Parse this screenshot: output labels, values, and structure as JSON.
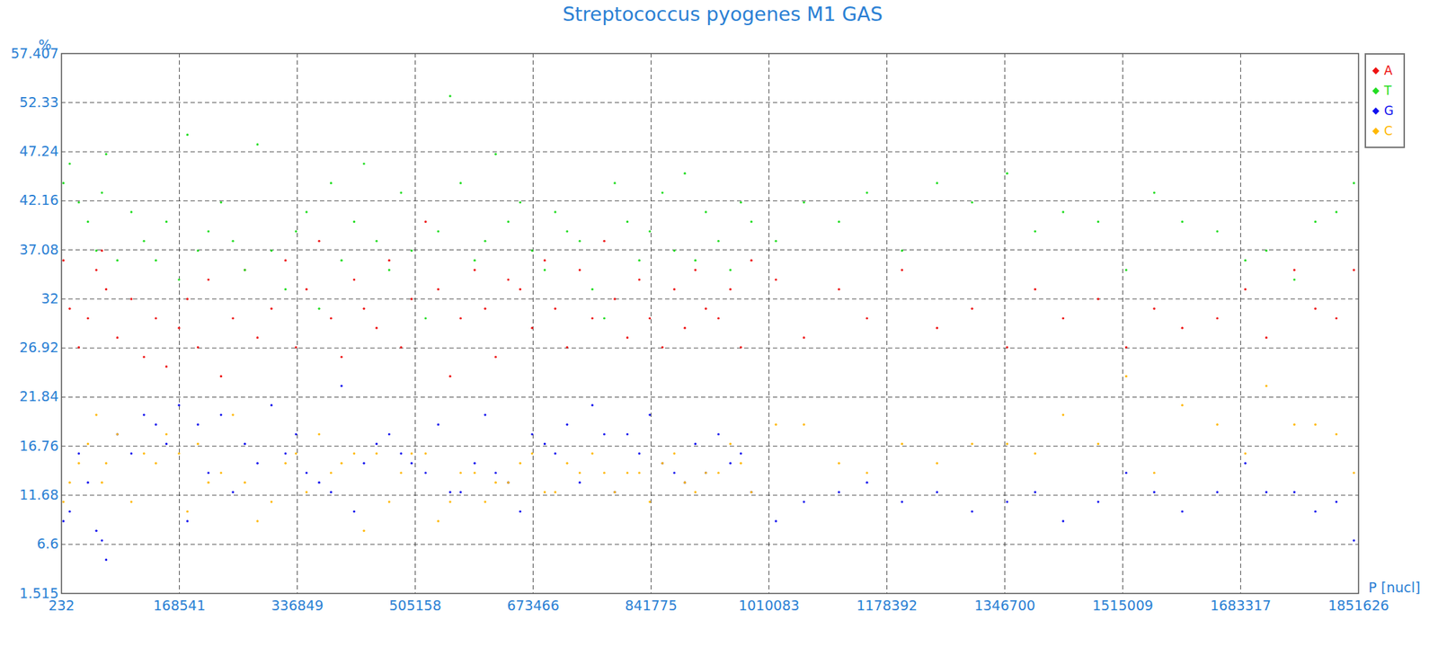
{
  "chart_data": {
    "type": "scatter",
    "title": "Streptococcus pyogenes M1 GAS",
    "y_label": "%",
    "x_label": "P [nucl]",
    "xlim": [
      232,
      1851626
    ],
    "ylim": [
      1.515,
      57.407
    ],
    "xticks": [
      232,
      168541,
      336849,
      505158,
      673466,
      841775,
      1010083,
      1178392,
      1346700,
      1515009,
      1683317,
      1851626
    ],
    "yticks": [
      1.515,
      6.6,
      11.68,
      16.76,
      21.84,
      26.92,
      32,
      37.08,
      42.16,
      47.24,
      52.33,
      57.407
    ],
    "grid": true,
    "legend": "top-right",
    "marker": "point",
    "x": [
      3000,
      12000,
      25000,
      38000,
      50000,
      58000,
      64000,
      80000,
      100000,
      118000,
      135000,
      150000,
      168000,
      180000,
      195000,
      210000,
      228000,
      245000,
      262000,
      280000,
      300000,
      320000,
      335000,
      350000,
      368000,
      385000,
      400000,
      418000,
      432000,
      450000,
      468000,
      485000,
      500000,
      520000,
      538000,
      555000,
      570000,
      590000,
      605000,
      620000,
      638000,
      655000,
      672000,
      690000,
      705000,
      722000,
      740000,
      758000,
      775000,
      790000,
      808000,
      825000,
      840000,
      858000,
      875000,
      890000,
      905000,
      920000,
      938000,
      955000,
      970000,
      985000,
      1020000,
      1060000,
      1110000,
      1150000,
      1200000,
      1250000,
      1300000,
      1350000,
      1390000,
      1430000,
      1480000,
      1520000,
      1560000,
      1600000,
      1650000,
      1690000,
      1720000,
      1760000,
      1790000,
      1820000,
      1845000
    ],
    "series": [
      {
        "name": "A",
        "color": "#ee1111",
        "values": [
          36,
          31,
          27,
          30,
          35,
          37,
          33,
          28,
          32,
          26,
          30,
          25,
          29,
          32,
          27,
          34,
          24,
          30,
          35,
          28,
          31,
          36,
          27,
          33,
          38,
          30,
          26,
          34,
          31,
          29,
          36,
          27,
          32,
          40,
          33,
          24,
          30,
          35,
          31,
          26,
          34,
          33,
          29,
          36,
          31,
          27,
          35,
          30,
          38,
          32,
          28,
          34,
          30,
          27,
          33,
          29,
          35,
          31,
          30,
          33,
          27,
          36,
          34,
          28,
          33,
          30,
          35,
          29,
          31,
          27,
          33,
          30,
          32,
          27,
          31,
          29,
          30,
          33,
          28,
          35,
          31,
          30,
          35
        ]
      },
      {
        "name": "T",
        "color": "#22dd22",
        "values": [
          44,
          46,
          42,
          40,
          37,
          43,
          47,
          36,
          41,
          38,
          36,
          40,
          34,
          49,
          37,
          39,
          42,
          38,
          35,
          48,
          37,
          33,
          39,
          41,
          31,
          44,
          36,
          40,
          46,
          38,
          35,
          43,
          37,
          30,
          39,
          53,
          44,
          36,
          38,
          47,
          40,
          42,
          37,
          35,
          41,
          39,
          38,
          33,
          30,
          44,
          40,
          36,
          39,
          43,
          37,
          45,
          36,
          41,
          38,
          35,
          42,
          40,
          38,
          42,
          40,
          43,
          37,
          44,
          42,
          45,
          39,
          41,
          40,
          35,
          43,
          40,
          39,
          36,
          37,
          34,
          40,
          41,
          44
        ]
      },
      {
        "name": "G",
        "color": "#1111ee",
        "values": [
          9,
          10,
          16,
          13,
          8,
          7,
          5,
          18,
          16,
          20,
          19,
          17,
          21,
          9,
          19,
          14,
          20,
          12,
          17,
          15,
          21,
          16,
          18,
          14,
          13,
          12,
          23,
          10,
          15,
          17,
          18,
          16,
          15,
          14,
          19,
          12,
          12,
          15,
          20,
          14,
          13,
          10,
          18,
          17,
          16,
          19,
          13,
          21,
          18,
          12,
          18,
          16,
          20,
          15,
          14,
          13,
          17,
          14,
          18,
          15,
          16,
          12,
          9,
          11,
          12,
          13,
          11,
          12,
          10,
          11,
          12,
          9,
          11,
          14,
          12,
          10,
          12,
          15,
          12,
          12,
          10,
          11,
          7
        ]
      },
      {
        "name": "C",
        "color": "#ffb800",
        "values": [
          11,
          13,
          15,
          17,
          20,
          13,
          15,
          18,
          11,
          16,
          15,
          18,
          16,
          10,
          17,
          13,
          14,
          20,
          13,
          9,
          11,
          15,
          16,
          12,
          18,
          14,
          15,
          16,
          8,
          16,
          11,
          14,
          16,
          16,
          9,
          11,
          14,
          14,
          11,
          13,
          13,
          15,
          16,
          12,
          12,
          15,
          14,
          16,
          14,
          12,
          14,
          14,
          11,
          15,
          16,
          13,
          12,
          14,
          14,
          17,
          15,
          12,
          19,
          19,
          15,
          14,
          17,
          15,
          17,
          17,
          16,
          20,
          17,
          24,
          14,
          21,
          19,
          16,
          23,
          19,
          19,
          18,
          14
        ]
      }
    ]
  }
}
